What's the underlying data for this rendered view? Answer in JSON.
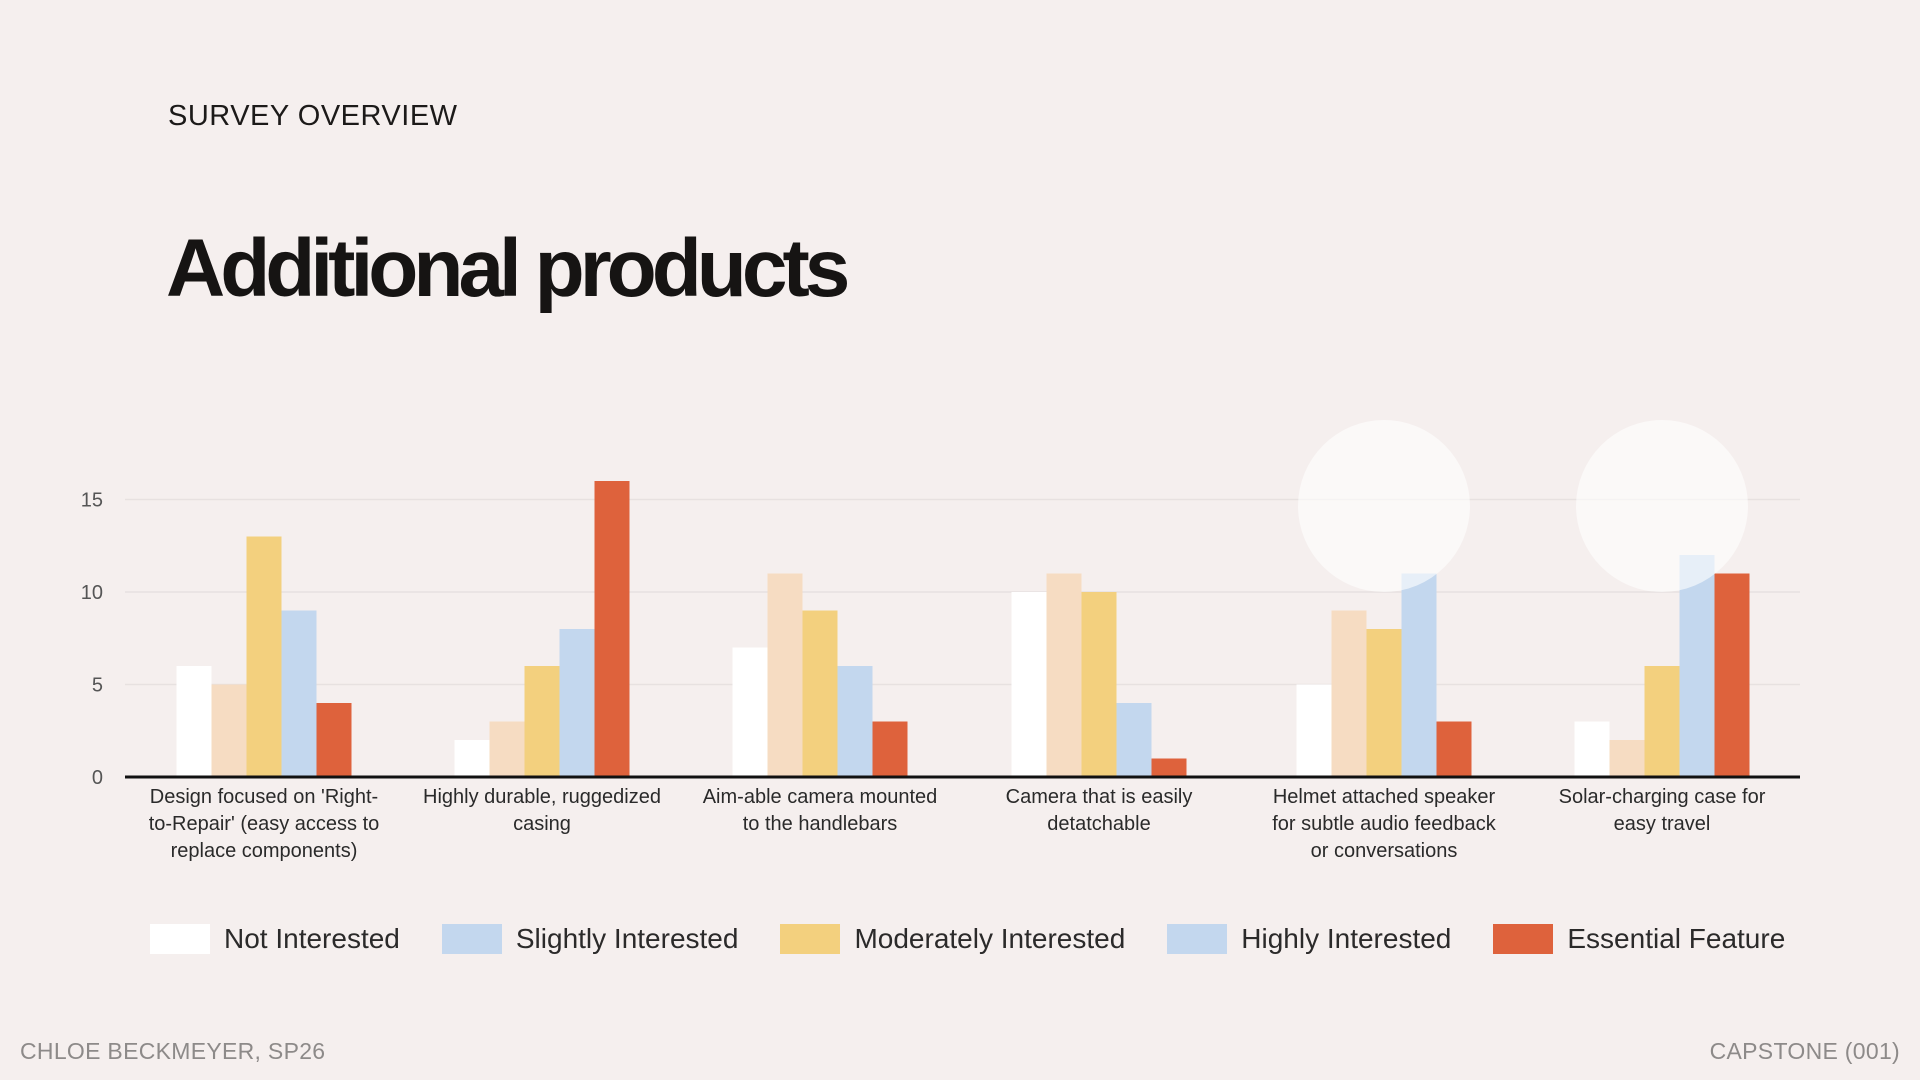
{
  "header": {
    "eyebrow": "SURVEY OVERVIEW",
    "title": "Additional products"
  },
  "footer": {
    "left": "CHLOE BECKMEYER, SP26",
    "right": "CAPSTONE (001)"
  },
  "chart_data": {
    "type": "bar",
    "title": "",
    "xlabel": "",
    "ylabel": "",
    "ylim": [
      0,
      16
    ],
    "yticks": [
      0,
      5,
      10,
      15
    ],
    "grid": true,
    "legend_position": "bottom",
    "categories": [
      "Design focused on 'Right-to-Repair' (easy access to replace components)",
      "Highly durable, ruggedized casing",
      "Aim-able camera mounted to the handlebars",
      "Camera that is easily detatchable",
      "Helmet attached speaker for subtle audio feedback or conversations",
      "Solar-charging case for easy travel"
    ],
    "category_lines": [
      [
        "Design focused on 'Right-",
        "to-Repair' (easy access to",
        "replace components)"
      ],
      [
        "Highly durable, ruggedized",
        "casing"
      ],
      [
        "Aim-able camera mounted",
        "to the handlebars"
      ],
      [
        "Camera that is easily",
        "detatchable"
      ],
      [
        "Helmet attached speaker",
        "for subtle audio feedback",
        "or conversations"
      ],
      [
        "Solar-charging case for",
        "easy travel"
      ]
    ],
    "series": [
      {
        "name": "Not Interested",
        "color": "#ffffff",
        "values": [
          6,
          2,
          7,
          10,
          5,
          3
        ]
      },
      {
        "name": "Slightly Interested",
        "color": "#f6dcc2",
        "legend_color": "#c3d7ee",
        "values": [
          5,
          3,
          11,
          11,
          9,
          2
        ]
      },
      {
        "name": "Moderately Interested",
        "color": "#f3d07e",
        "values": [
          13,
          6,
          9,
          10,
          8,
          6
        ]
      },
      {
        "name": "Highly Interested",
        "color": "#c3d7ee",
        "values": [
          9,
          8,
          6,
          4,
          11,
          12
        ]
      },
      {
        "name": "Essential Feature",
        "color": "#de623c",
        "values": [
          4,
          16,
          3,
          1,
          3,
          11
        ]
      }
    ]
  }
}
